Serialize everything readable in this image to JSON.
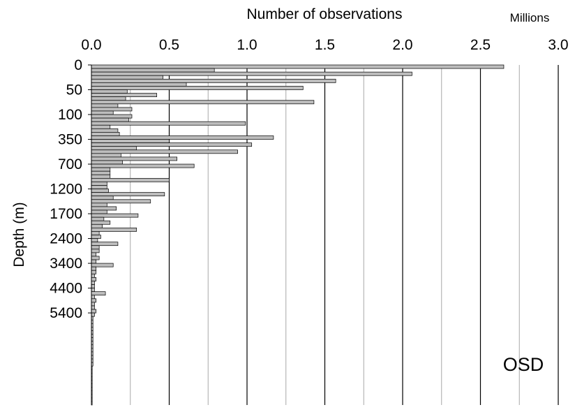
{
  "chart_data": {
    "type": "bar",
    "orientation": "horizontal",
    "title": "",
    "xlabel": "Number of observations",
    "x_units": "Millions",
    "ylabel": "Depth (m)",
    "annotation": "OSD",
    "xlim": [
      0,
      3.0
    ],
    "x_ticks": [
      "0.0",
      "0.5",
      "1.0",
      "1.5",
      "2.0",
      "2.5",
      "3.0"
    ],
    "grid": {
      "major_every": 0.5,
      "minor_every": 0.25
    },
    "y_tick_labels": [
      {
        "label": "0",
        "at_index": 0
      },
      {
        "label": "50",
        "at_index": 7
      },
      {
        "label": "100",
        "at_index": 14
      },
      {
        "label": "350",
        "at_index": 21
      },
      {
        "label": "700",
        "at_index": 28
      },
      {
        "label": "1200",
        "at_index": 35
      },
      {
        "label": "1700",
        "at_index": 42
      },
      {
        "label": "2400",
        "at_index": 49
      },
      {
        "label": "3400",
        "at_index": 56
      },
      {
        "label": "4400",
        "at_index": 63
      },
      {
        "label": "5400",
        "at_index": 70
      }
    ],
    "series": [
      {
        "values": [
          2.65,
          0.79,
          2.06,
          0.46,
          1.57,
          0.61,
          1.36,
          0.23,
          0.42,
          0.22,
          1.43,
          0.17,
          0.26,
          0.14,
          0.26,
          0.24,
          0.99,
          0.12,
          0.17,
          0.18,
          1.17,
          0.5,
          1.03,
          0.29,
          0.94,
          0.19,
          0.55,
          0.2,
          0.66,
          0.12,
          0.12,
          0.12,
          0.5,
          0.1,
          0.1,
          0.11,
          0.47,
          0.14,
          0.38,
          0.1,
          0.16,
          0.1,
          0.3,
          0.08,
          0.12,
          0.07,
          0.29,
          0.05,
          0.06,
          0.04,
          0.17,
          0.05,
          0.05,
          0.03,
          0.05,
          0.03,
          0.14,
          0.03,
          0.03,
          0.02,
          0.03,
          0.02,
          0.02,
          0.02,
          0.09,
          0.02,
          0.03,
          0.02,
          0.02,
          0.03,
          0.02,
          0.01,
          0.01,
          0.01,
          0.01,
          0.01,
          0.01,
          0.01,
          0.01,
          0.01,
          0.01,
          0.01,
          0.01,
          0.01,
          0.01,
          0.005,
          0.005,
          0.005,
          0.005,
          0.005,
          0.005,
          0.005,
          0.005,
          0.005,
          0.005,
          0.005
        ]
      }
    ]
  }
}
